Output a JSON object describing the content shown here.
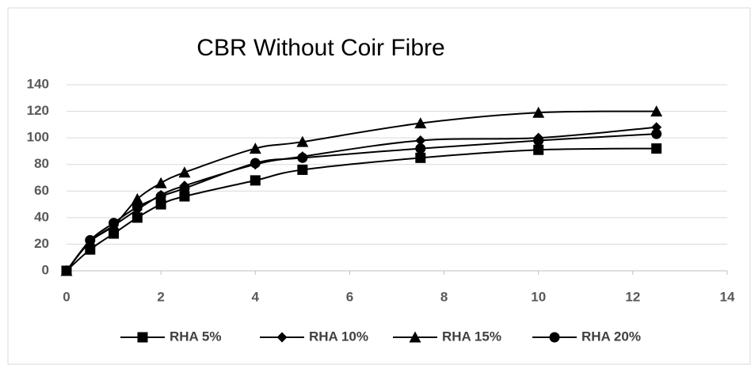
{
  "chart_data": {
    "type": "line",
    "title": "CBR Without Coir Fibre",
    "x": [
      0,
      0.5,
      1,
      1.5,
      2,
      2.5,
      4,
      5,
      7.5,
      10,
      12.5
    ],
    "series": [
      {
        "name": "RHA 5%",
        "color": "#000000",
        "marker": "square",
        "values": [
          0,
          16,
          28,
          40,
          50,
          56,
          68,
          76,
          85,
          91,
          92
        ]
      },
      {
        "name": "RHA 10%",
        "color": "#000000",
        "marker": "diamond",
        "values": [
          0,
          22,
          34,
          46,
          57,
          64,
          80,
          86,
          98,
          100,
          108
        ]
      },
      {
        "name": "RHA 15%",
        "color": "#000000",
        "marker": "triangle",
        "values": [
          0,
          22,
          34,
          54,
          66,
          74,
          92,
          97,
          111,
          119,
          120
        ]
      },
      {
        "name": "RHA 20%",
        "color": "#000000",
        "marker": "circle",
        "values": [
          0,
          23,
          36,
          48,
          56,
          62,
          81,
          85,
          92,
          98,
          103
        ]
      }
    ],
    "xlim": [
      0,
      14
    ],
    "xticks": [
      0,
      2,
      4,
      6,
      8,
      10,
      12,
      14
    ],
    "ylim": [
      0,
      140
    ],
    "yticks": [
      0,
      20,
      40,
      60,
      80,
      100,
      120,
      140
    ],
    "grid": true,
    "legend": "bottom",
    "smooth": true
  }
}
